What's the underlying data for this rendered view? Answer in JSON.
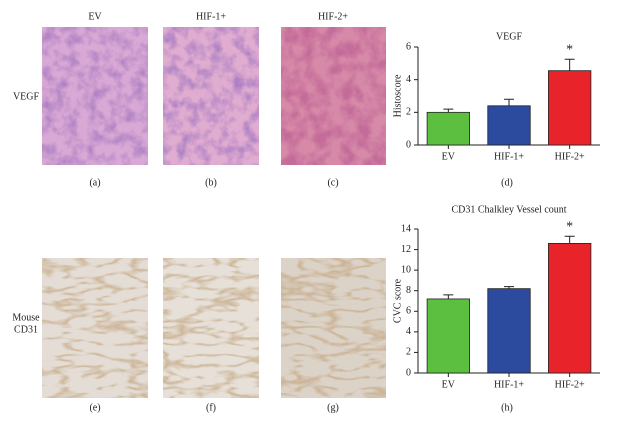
{
  "figure": {
    "columns": [
      "EV",
      "HIF-1+",
      "HIF-2+"
    ],
    "rows": [
      "VEGF",
      "Mouse",
      "CD31"
    ],
    "panels": [
      "(a)",
      "(b)",
      "(c)",
      "(d)",
      "(e)",
      "(f)",
      "(g)",
      "(h)"
    ]
  },
  "chart_data": [
    {
      "type": "bar",
      "title": "VEGF",
      "y_label": "Histoscore",
      "categories": [
        "EV",
        "HIF-1+",
        "HIF-2+"
      ],
      "values": [
        2.0,
        2.4,
        4.55
      ],
      "errors": [
        0.2,
        0.4,
        0.7
      ],
      "colors": [
        "#5cbf3f",
        "#2c4a9e",
        "#e8242a"
      ],
      "ylim": [
        0,
        6
      ],
      "yticks": [
        0,
        2,
        4,
        6
      ],
      "annotations": [
        {
          "text": "*",
          "category": "HIF-2+"
        }
      ]
    },
    {
      "type": "bar",
      "title": "CD31 Chalkley Vessel count",
      "y_label": "CVC score",
      "categories": [
        "EV",
        "HIF-1+",
        "HIF-2+"
      ],
      "values": [
        7.2,
        8.2,
        12.6
      ],
      "errors": [
        0.4,
        0.2,
        0.7
      ],
      "colors": [
        "#5cbf3f",
        "#2c4a9e",
        "#e8242a"
      ],
      "ylim": [
        0,
        14
      ],
      "yticks": [
        0,
        2,
        4,
        6,
        8,
        10,
        12,
        14
      ],
      "annotations": [
        {
          "text": "*",
          "category": "HIF-2+"
        }
      ]
    }
  ]
}
